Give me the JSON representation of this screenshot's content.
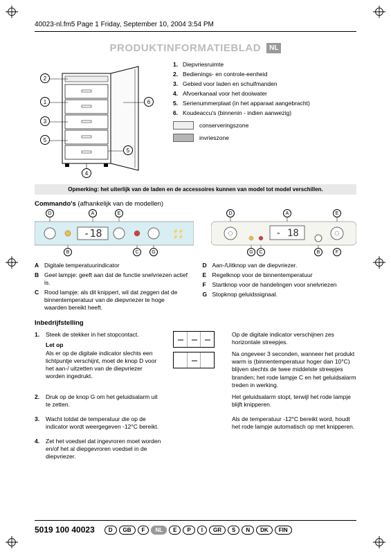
{
  "header": {
    "text": "40023-nl.fm5  Page 1  Friday, September 10, 2004  3:54 PM"
  },
  "title": "PRODUKTINFORMATIEBLAD",
  "lang_badge": "NL",
  "legend": [
    {
      "n": "1.",
      "t": "Diepvriesruimte"
    },
    {
      "n": "2.",
      "t": "Bedienings- en controle-eenheid"
    },
    {
      "n": "3.",
      "t": "Gebied voor laden en schuifmanden"
    },
    {
      "n": "4.",
      "t": "Afvoerkanaal voor het dooiwater"
    },
    {
      "n": "5.",
      "t": "Serienummerplaat (in het apparaat aangebracht)"
    },
    {
      "n": "6.",
      "t": "Koudeaccu's (binnenin - indien aanwezig)"
    }
  ],
  "zones": {
    "a": "conserveringszone",
    "b": "invrieszone"
  },
  "zone_colors": {
    "a": "#f0f0f0",
    "b": "#b5b5b5"
  },
  "note": "Opmerking: het uiterlijk van de laden en de accessoires kunnen van model tot model verschillen.",
  "commands_title": "Commando's",
  "commands_sub": " (afhankelijk van de modellen)",
  "commands_left": [
    {
      "l": "A",
      "t": "Digitale temperatuurindicator"
    },
    {
      "l": "B",
      "t": "Geel lampje: geeft aan dat de functie snelvriezen actief is."
    },
    {
      "l": "C",
      "t": "Rood lampje: als dit knippert, wil dat zeggen dat de binnentemperatuur van de diepvriezer te hoge waarden bereikt heeft."
    }
  ],
  "commands_right": [
    {
      "l": "D",
      "t": "Aan-/Uitknop van de diepvriezer."
    },
    {
      "l": "E",
      "t": "Regelknop voor de binnentemperatuur"
    },
    {
      "l": "F",
      "t": "Startknop voor de handelingen voor snelvriezen"
    },
    {
      "l": "G",
      "t": "Stopknop geluidssignaal."
    }
  ],
  "panel_display": "-18",
  "startup_title": "Inbedrijfstelling",
  "steps": [
    {
      "n": "1.",
      "t": "Steek de stekker in het stopcontact."
    }
  ],
  "letop": "Let op",
  "letop_text": "Als er op de digitale indicator slechts een lichtpuntje verschijnt, moet de knop D voor het aan-/ uitzetten van de diepvriezer worden ingedrukt.",
  "steps2": [
    {
      "n": "2.",
      "t": "Druk op de knop G om het geluidsalarm uit te zetten."
    },
    {
      "n": "3.",
      "t": "Wacht totdat de temperatuur die op de indicator wordt weergegeven -12°C bereikt."
    },
    {
      "n": "4.",
      "t": "Zet het voedsel dat ingevroren moet worden en/of het al diepgevroren voedsel in de diepvriezer."
    }
  ],
  "right_texts": [
    "Op de digitale indicator verschijnen zes horizontale streepjes.",
    "Na ongeveer 3 seconden, wanneer het produkt warm is (binnentemperatuur hoger dan 10°C) blijven slechts de twee middelste streepjes branden; het rode lampje C en het geluidsalarm treden in werking.",
    "Het geluidsalarm stopt, terwijl het rode lampje blijft knipperen.",
    "Als de temperatuur -12°C bereikt word, houdt het rode lampje automatisch op met knipperen."
  ],
  "footer_code": "5019 100 40023",
  "langs": [
    "D",
    "GB",
    "F",
    "NL",
    "E",
    "P",
    "I",
    "GR",
    "S",
    "N",
    "DK",
    "FIN"
  ],
  "lang_active": "NL",
  "colors": {
    "title_gray": "#bbbbbb",
    "badge_bg": "#999999",
    "panel_bg": "#d8eef2",
    "panel2_bg": "#f5f5f0"
  }
}
